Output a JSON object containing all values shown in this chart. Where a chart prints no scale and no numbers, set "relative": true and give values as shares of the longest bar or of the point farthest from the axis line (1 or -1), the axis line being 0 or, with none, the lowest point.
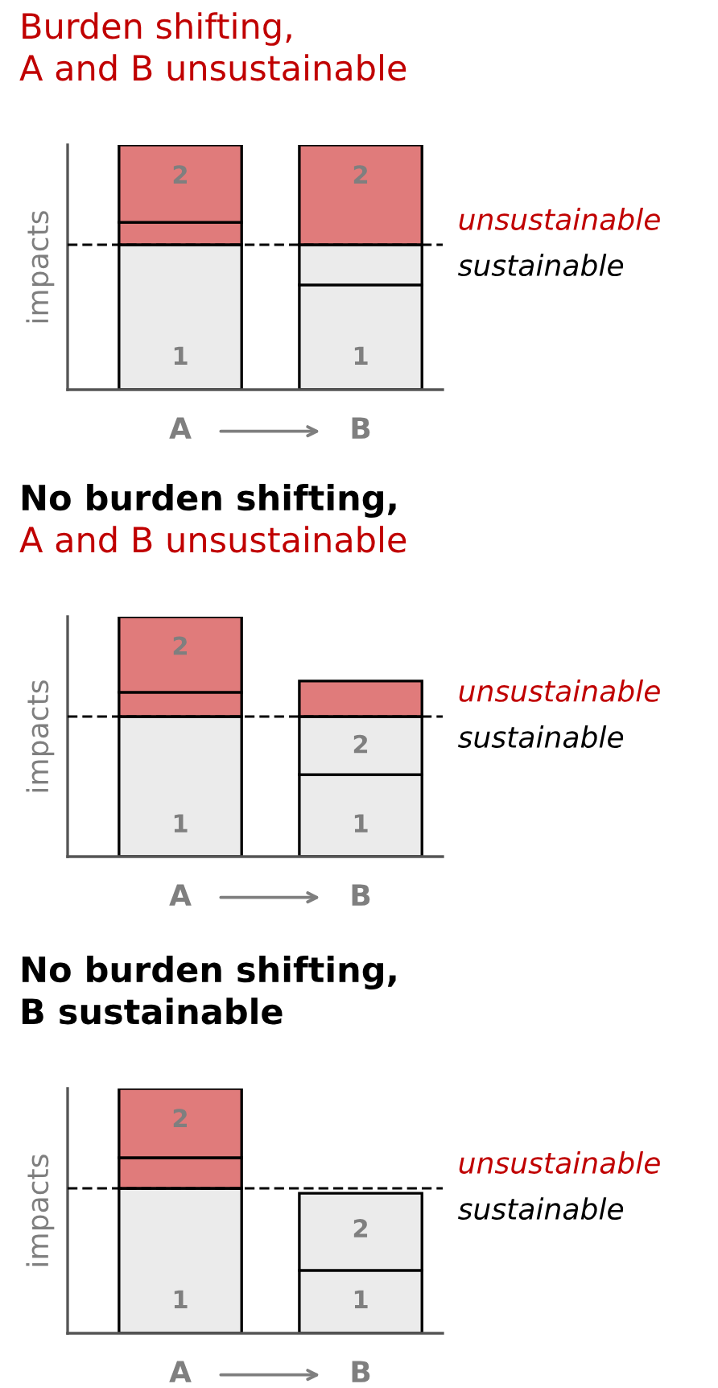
{
  "chart_data": [
    {
      "type": "bar",
      "title": "Burden shifting,",
      "subtitle": "A and B unsustainable",
      "ylabel": "impacts",
      "categories": [
        "A",
        "B"
      ],
      "relative": true,
      "stacked": true,
      "grid": false,
      "legend": false,
      "series": [
        {
          "color": "#ebebeb",
          "values": [
            0.592,
            0.428
          ]
        },
        {
          "color": "#e07b7b",
          "values": [
            0.092,
            null
          ]
        },
        {
          "color": "#ebebeb",
          "values": [
            null,
            0.164
          ]
        },
        {
          "color": "#e07b7b",
          "values": [
            0.316,
            0.408
          ]
        }
      ],
      "ref_lines": [
        {
          "axis": "y",
          "value": 0.592,
          "label": "sustainable",
          "line_style": "dashed",
          "color": "#000000"
        }
      ],
      "annotations": [
        "unsustainable",
        "1",
        "2",
        "1",
        "2"
      ]
    },
    {
      "type": "bar",
      "title": "No burden shifting,",
      "subtitle": "A and B unsustainable",
      "ylabel": "impacts",
      "categories": [
        "A",
        "B"
      ],
      "relative": true,
      "stacked": true,
      "grid": false,
      "legend": false,
      "series": [
        {
          "color": "#ebebeb",
          "values": [
            0.584,
            0.342
          ]
        },
        {
          "color": "#e07b7b",
          "values": [
            0.101,
            null
          ]
        },
        {
          "color": "#ebebeb",
          "values": [
            null,
            0.242
          ]
        },
        {
          "color": "#e07b7b",
          "values": [
            0.315,
            0.148
          ]
        }
      ],
      "ref_lines": [
        {
          "axis": "y",
          "value": 0.584,
          "label": "sustainable",
          "line_style": "dashed",
          "color": "#000000"
        }
      ],
      "annotations": [
        "unsustainable",
        "1",
        "2",
        "1",
        "2"
      ]
    },
    {
      "type": "bar",
      "title": "No burden shifting,",
      "subtitle": "B sustainable",
      "ylabel": "impacts",
      "categories": [
        "A",
        "B"
      ],
      "relative": true,
      "stacked": true,
      "grid": false,
      "legend": false,
      "series": [
        {
          "color": "#ebebeb",
          "values": [
            0.592,
            0.257
          ]
        },
        {
          "color": "#e07b7b",
          "values": [
            0.125,
            null
          ]
        },
        {
          "color": "#ebebeb",
          "values": [
            null,
            0.315
          ]
        },
        {
          "color": "#e07b7b",
          "values": [
            0.283,
            null
          ]
        }
      ],
      "ref_lines": [
        {
          "axis": "y",
          "value": 0.592,
          "label": "sustainable",
          "line_style": "dashed",
          "color": "#000000"
        }
      ],
      "annotations": [
        "unsustainable",
        "1",
        "2",
        "1",
        "2"
      ]
    }
  ]
}
